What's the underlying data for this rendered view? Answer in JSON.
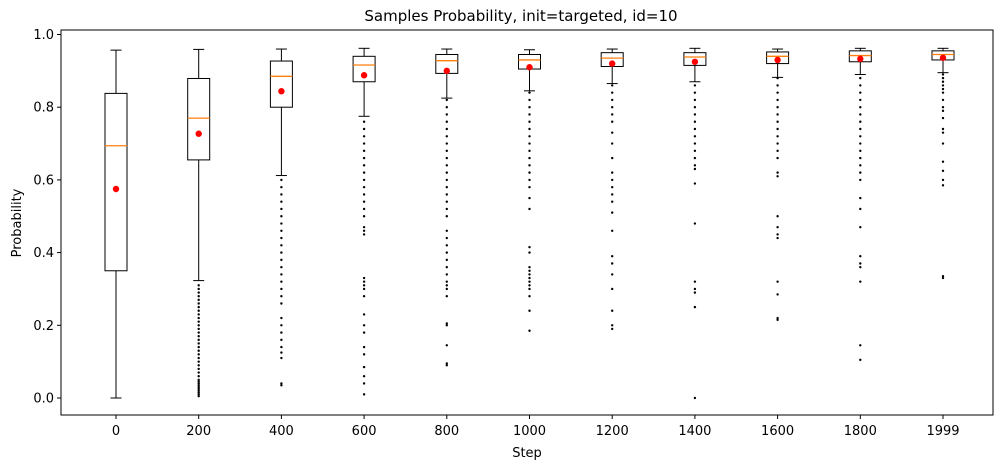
{
  "chart_data": {
    "type": "box",
    "title": "Samples Probability, init=targeted, id=10",
    "xlabel": "Step",
    "ylabel": "Probability",
    "ylim": [
      -0.05,
      1.01
    ],
    "yticks": [
      "0.0",
      "0.2",
      "0.4",
      "0.6",
      "0.8",
      "1.0"
    ],
    "grid": false,
    "colors": {
      "box": "#000000",
      "median": "#ff7f0e",
      "mean": "#ff0000",
      "outlier": "#000000"
    },
    "categories": [
      "0",
      "200",
      "400",
      "600",
      "800",
      "1000",
      "1200",
      "1400",
      "1600",
      "1800",
      "1999"
    ],
    "boxes": [
      {
        "step": "0",
        "whislo": 0.0,
        "q1": 0.35,
        "median": 0.694,
        "q3": 0.838,
        "whishi": 0.957,
        "mean": 0.575,
        "outliers": []
      },
      {
        "step": "200",
        "whislo": 0.323,
        "q1": 0.655,
        "median": 0.77,
        "q3": 0.879,
        "whishi": 0.959,
        "mean": 0.727,
        "outliers": [
          0.005,
          0.01,
          0.015,
          0.02,
          0.025,
          0.03,
          0.035,
          0.04,
          0.045,
          0.05,
          0.06,
          0.07,
          0.08,
          0.09,
          0.1,
          0.11,
          0.12,
          0.13,
          0.14,
          0.15,
          0.16,
          0.17,
          0.18,
          0.19,
          0.2,
          0.21,
          0.22,
          0.23,
          0.24,
          0.25,
          0.26,
          0.27,
          0.28,
          0.29,
          0.3,
          0.31
        ]
      },
      {
        "step": "400",
        "whislo": 0.612,
        "q1": 0.8,
        "median": 0.885,
        "q3": 0.927,
        "whishi": 0.96,
        "mean": 0.844,
        "outliers": [
          0.035,
          0.04,
          0.11,
          0.125,
          0.14,
          0.16,
          0.18,
          0.2,
          0.22,
          0.26,
          0.28,
          0.3,
          0.32,
          0.34,
          0.36,
          0.38,
          0.4,
          0.42,
          0.44,
          0.46,
          0.48,
          0.5,
          0.52,
          0.54,
          0.56,
          0.58,
          0.6
        ]
      },
      {
        "step": "600",
        "whislo": 0.775,
        "q1": 0.87,
        "median": 0.916,
        "q3": 0.94,
        "whishi": 0.962,
        "mean": 0.888,
        "outliers": [
          0.01,
          0.04,
          0.06,
          0.085,
          0.12,
          0.14,
          0.18,
          0.2,
          0.23,
          0.28,
          0.3,
          0.31,
          0.32,
          0.33,
          0.45,
          0.46,
          0.47,
          0.5,
          0.52,
          0.54,
          0.56,
          0.58,
          0.6,
          0.62,
          0.64,
          0.66,
          0.68,
          0.7,
          0.72,
          0.74,
          0.76
        ]
      },
      {
        "step": "800",
        "whislo": 0.825,
        "q1": 0.893,
        "median": 0.928,
        "q3": 0.945,
        "whishi": 0.96,
        "mean": 0.9,
        "outliers": [
          0.09,
          0.095,
          0.145,
          0.2,
          0.205,
          0.28,
          0.3,
          0.31,
          0.32,
          0.34,
          0.36,
          0.38,
          0.4,
          0.42,
          0.44,
          0.46,
          0.5,
          0.52,
          0.54,
          0.56,
          0.58,
          0.6,
          0.62,
          0.64,
          0.66,
          0.68,
          0.7,
          0.72,
          0.74,
          0.76,
          0.78,
          0.8,
          0.82
        ]
      },
      {
        "step": "1000",
        "whislo": 0.845,
        "q1": 0.905,
        "median": 0.93,
        "q3": 0.945,
        "whishi": 0.958,
        "mean": 0.91,
        "outliers": [
          0.185,
          0.24,
          0.28,
          0.3,
          0.31,
          0.32,
          0.33,
          0.34,
          0.35,
          0.36,
          0.4,
          0.415,
          0.52,
          0.55,
          0.58,
          0.6,
          0.62,
          0.64,
          0.66,
          0.68,
          0.7,
          0.72,
          0.74,
          0.76,
          0.78,
          0.8,
          0.82,
          0.84
        ]
      },
      {
        "step": "1200",
        "whislo": 0.865,
        "q1": 0.912,
        "median": 0.935,
        "q3": 0.95,
        "whishi": 0.96,
        "mean": 0.92,
        "outliers": [
          0.19,
          0.2,
          0.24,
          0.3,
          0.34,
          0.37,
          0.39,
          0.46,
          0.51,
          0.54,
          0.56,
          0.58,
          0.6,
          0.62,
          0.66,
          0.7,
          0.73,
          0.76,
          0.78,
          0.8,
          0.82,
          0.84,
          0.86
        ]
      },
      {
        "step": "1400",
        "whislo": 0.87,
        "q1": 0.915,
        "median": 0.938,
        "q3": 0.95,
        "whishi": 0.962,
        "mean": 0.925,
        "outliers": [
          0.0,
          0.25,
          0.29,
          0.3,
          0.32,
          0.48,
          0.59,
          0.63,
          0.64,
          0.66,
          0.68,
          0.7,
          0.72,
          0.74,
          0.76,
          0.78,
          0.8,
          0.82,
          0.84,
          0.86
        ]
      },
      {
        "step": "1600",
        "whislo": 0.882,
        "q1": 0.92,
        "median": 0.94,
        "q3": 0.952,
        "whishi": 0.96,
        "mean": 0.93,
        "outliers": [
          0.215,
          0.22,
          0.285,
          0.32,
          0.44,
          0.45,
          0.47,
          0.5,
          0.61,
          0.62,
          0.66,
          0.68,
          0.7,
          0.72,
          0.74,
          0.76,
          0.78,
          0.8,
          0.82,
          0.84,
          0.86,
          0.88
        ]
      },
      {
        "step": "1800",
        "whislo": 0.89,
        "q1": 0.925,
        "median": 0.942,
        "q3": 0.955,
        "whishi": 0.962,
        "mean": 0.933,
        "outliers": [
          0.105,
          0.145,
          0.32,
          0.36,
          0.37,
          0.39,
          0.47,
          0.52,
          0.55,
          0.6,
          0.62,
          0.64,
          0.66,
          0.68,
          0.7,
          0.72,
          0.74,
          0.76,
          0.78,
          0.8,
          0.82,
          0.84,
          0.86,
          0.88
        ]
      },
      {
        "step": "1999",
        "whislo": 0.895,
        "q1": 0.93,
        "median": 0.945,
        "q3": 0.955,
        "whishi": 0.962,
        "mean": 0.936,
        "outliers": [
          0.33,
          0.335,
          0.585,
          0.6,
          0.625,
          0.65,
          0.7,
          0.73,
          0.74,
          0.77,
          0.79,
          0.8,
          0.82,
          0.84,
          0.85,
          0.86,
          0.87,
          0.88,
          0.89
        ]
      }
    ]
  }
}
